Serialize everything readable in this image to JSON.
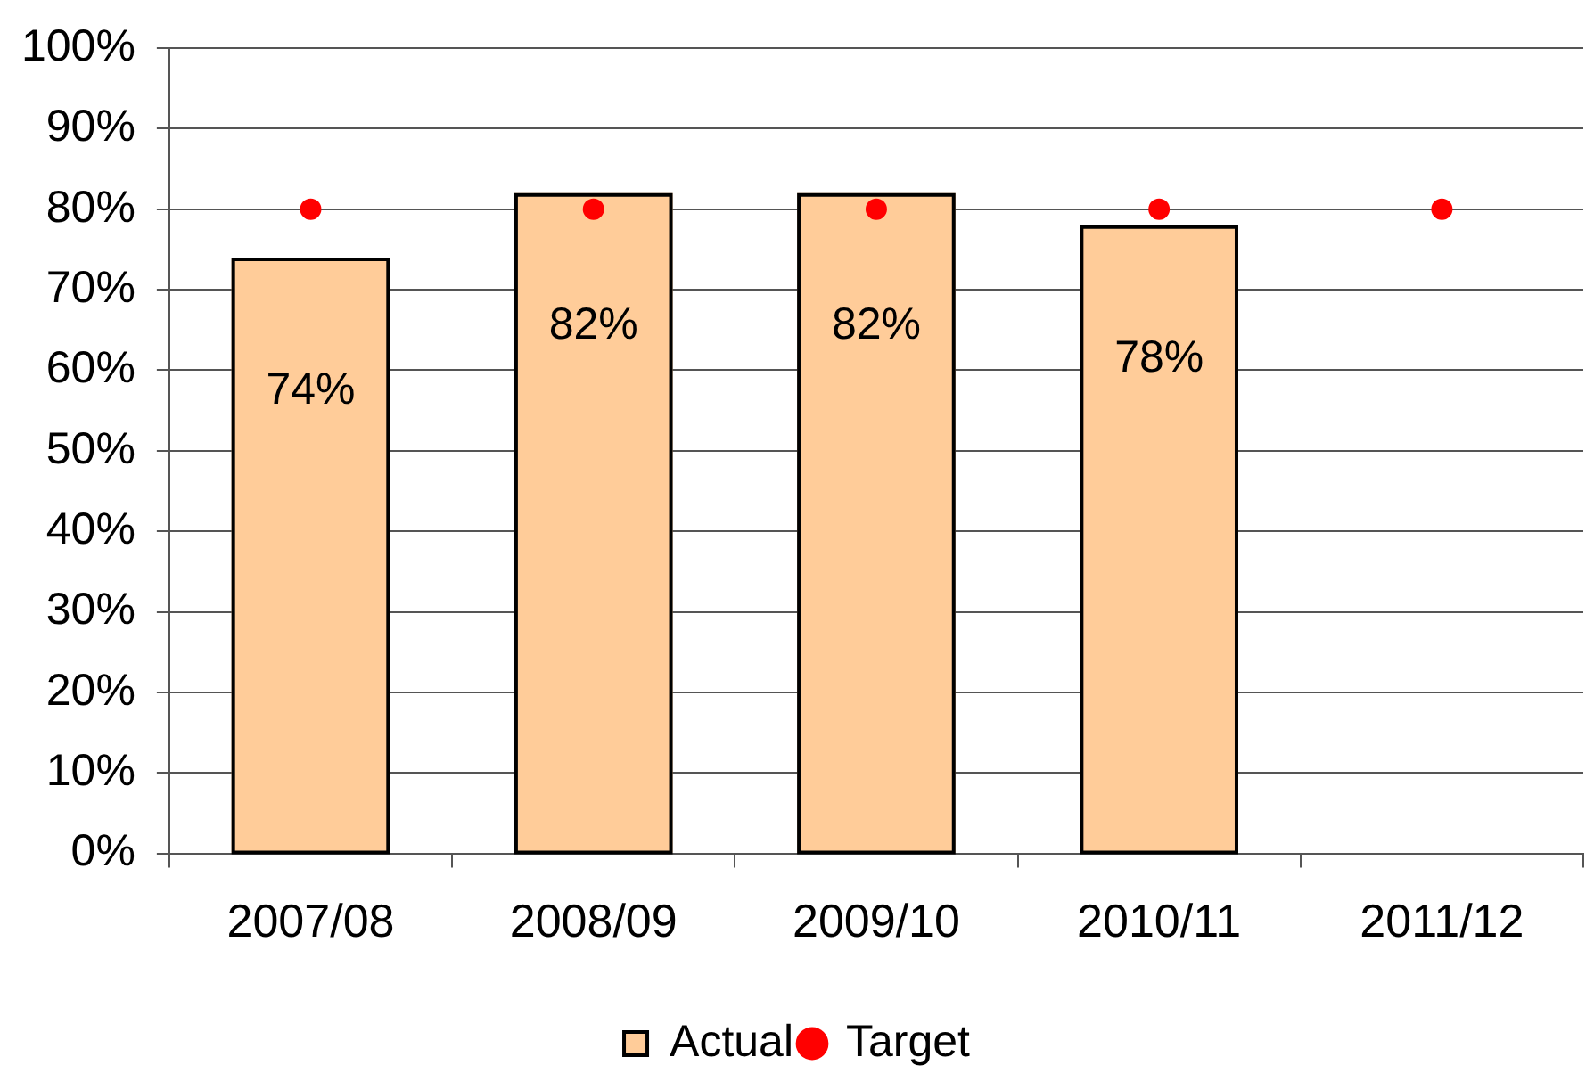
{
  "chart_data": {
    "type": "bar",
    "categories": [
      "2007/08",
      "2008/09",
      "2009/10",
      "2010/11",
      "2011/12"
    ],
    "series": [
      {
        "name": "Actual",
        "color": "#ffcc99",
        "values": [
          74,
          82,
          82,
          78,
          null
        ],
        "value_labels": [
          "74%",
          "82%",
          "82%",
          "78%",
          null
        ]
      },
      {
        "name": "Target",
        "type": "scatter",
        "color": "#ff0000",
        "x": [
          "2007/08",
          "2008/09",
          "2009/10",
          "2010/11",
          "2011/12"
        ],
        "values": [
          80,
          80,
          80,
          80,
          80
        ]
      }
    ],
    "ylim": [
      0,
      100
    ],
    "yticks": [
      {
        "value": 0,
        "label": "0%"
      },
      {
        "value": 10,
        "label": "10%"
      },
      {
        "value": 20,
        "label": "20%"
      },
      {
        "value": 30,
        "label": "30%"
      },
      {
        "value": 40,
        "label": "40%"
      },
      {
        "value": 50,
        "label": "50%"
      },
      {
        "value": 60,
        "label": "60%"
      },
      {
        "value": 70,
        "label": "70%"
      },
      {
        "value": 80,
        "label": "80%"
      },
      {
        "value": 90,
        "label": "90%"
      },
      {
        "value": 100,
        "label": "100%"
      }
    ],
    "grid": "y",
    "legend": "bottom",
    "marker": "circle"
  }
}
